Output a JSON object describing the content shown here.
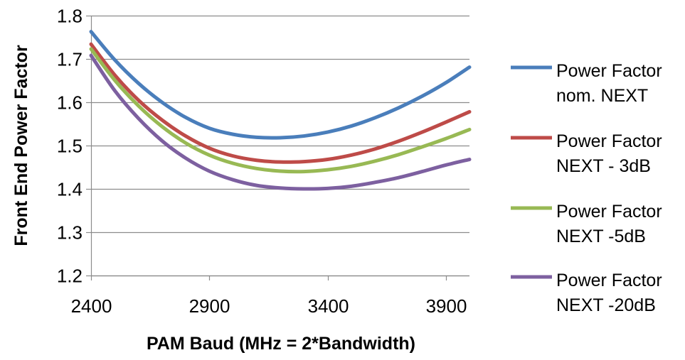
{
  "chart_data": {
    "type": "line",
    "title": "",
    "xlabel": "PAM Baud (MHz = 2*Bandwidth)",
    "ylabel": "Front End Power Factor",
    "xlim": [
      2400,
      4000
    ],
    "ylim": [
      1.2,
      1.8
    ],
    "x_ticks": [
      2400,
      2900,
      3400,
      3900
    ],
    "x_tick_labels": [
      "2400",
      "2900",
      "3400",
      "3900"
    ],
    "y_ticks": [
      1.2,
      1.3,
      1.4,
      1.5,
      1.6,
      1.7,
      1.8
    ],
    "y_tick_labels": [
      "1.2",
      "1.3",
      "1.4",
      "1.5",
      "1.6",
      "1.7",
      "1.8"
    ],
    "grid": "horizontal",
    "legend_position": "right",
    "x": [
      2400,
      2500,
      2600,
      2700,
      2800,
      2900,
      3000,
      3100,
      3200,
      3300,
      3400,
      3500,
      3600,
      3700,
      3800,
      3900,
      4000
    ],
    "series": [
      {
        "name": "Power Factor nom. NEXT",
        "legend_lines": [
          "Power Factor",
          "nom. NEXT"
        ],
        "color": "#4A7EBB",
        "values": [
          1.763,
          1.698,
          1.644,
          1.6,
          1.565,
          1.54,
          1.526,
          1.519,
          1.518,
          1.522,
          1.531,
          1.545,
          1.564,
          1.587,
          1.614,
          1.645,
          1.681
        ]
      },
      {
        "name": "Power Factor NEXT - 3dB",
        "legend_lines": [
          "Power Factor",
          "NEXT - 3dB"
        ],
        "color": "#BE4B48",
        "values": [
          1.734,
          1.663,
          1.605,
          1.559,
          1.522,
          1.494,
          1.476,
          1.466,
          1.462,
          1.463,
          1.468,
          1.478,
          1.492,
          1.51,
          1.531,
          1.554,
          1.578
        ]
      },
      {
        "name": "Power Factor NEXT -5dB",
        "legend_lines": [
          "Power Factor",
          "NEXT -5dB"
        ],
        "color": "#98B954",
        "values": [
          1.723,
          1.651,
          1.592,
          1.544,
          1.506,
          1.478,
          1.459,
          1.447,
          1.441,
          1.44,
          1.444,
          1.452,
          1.464,
          1.479,
          1.497,
          1.516,
          1.537
        ]
      },
      {
        "name": "Power Factor NEXT -20dB",
        "legend_lines": [
          "Power Factor",
          "NEXT -20dB"
        ],
        "color": "#7D60A0",
        "values": [
          1.708,
          1.627,
          1.563,
          1.511,
          1.471,
          1.441,
          1.421,
          1.408,
          1.402,
          1.4,
          1.401,
          1.406,
          1.415,
          1.426,
          1.44,
          1.455,
          1.468
        ]
      }
    ]
  }
}
